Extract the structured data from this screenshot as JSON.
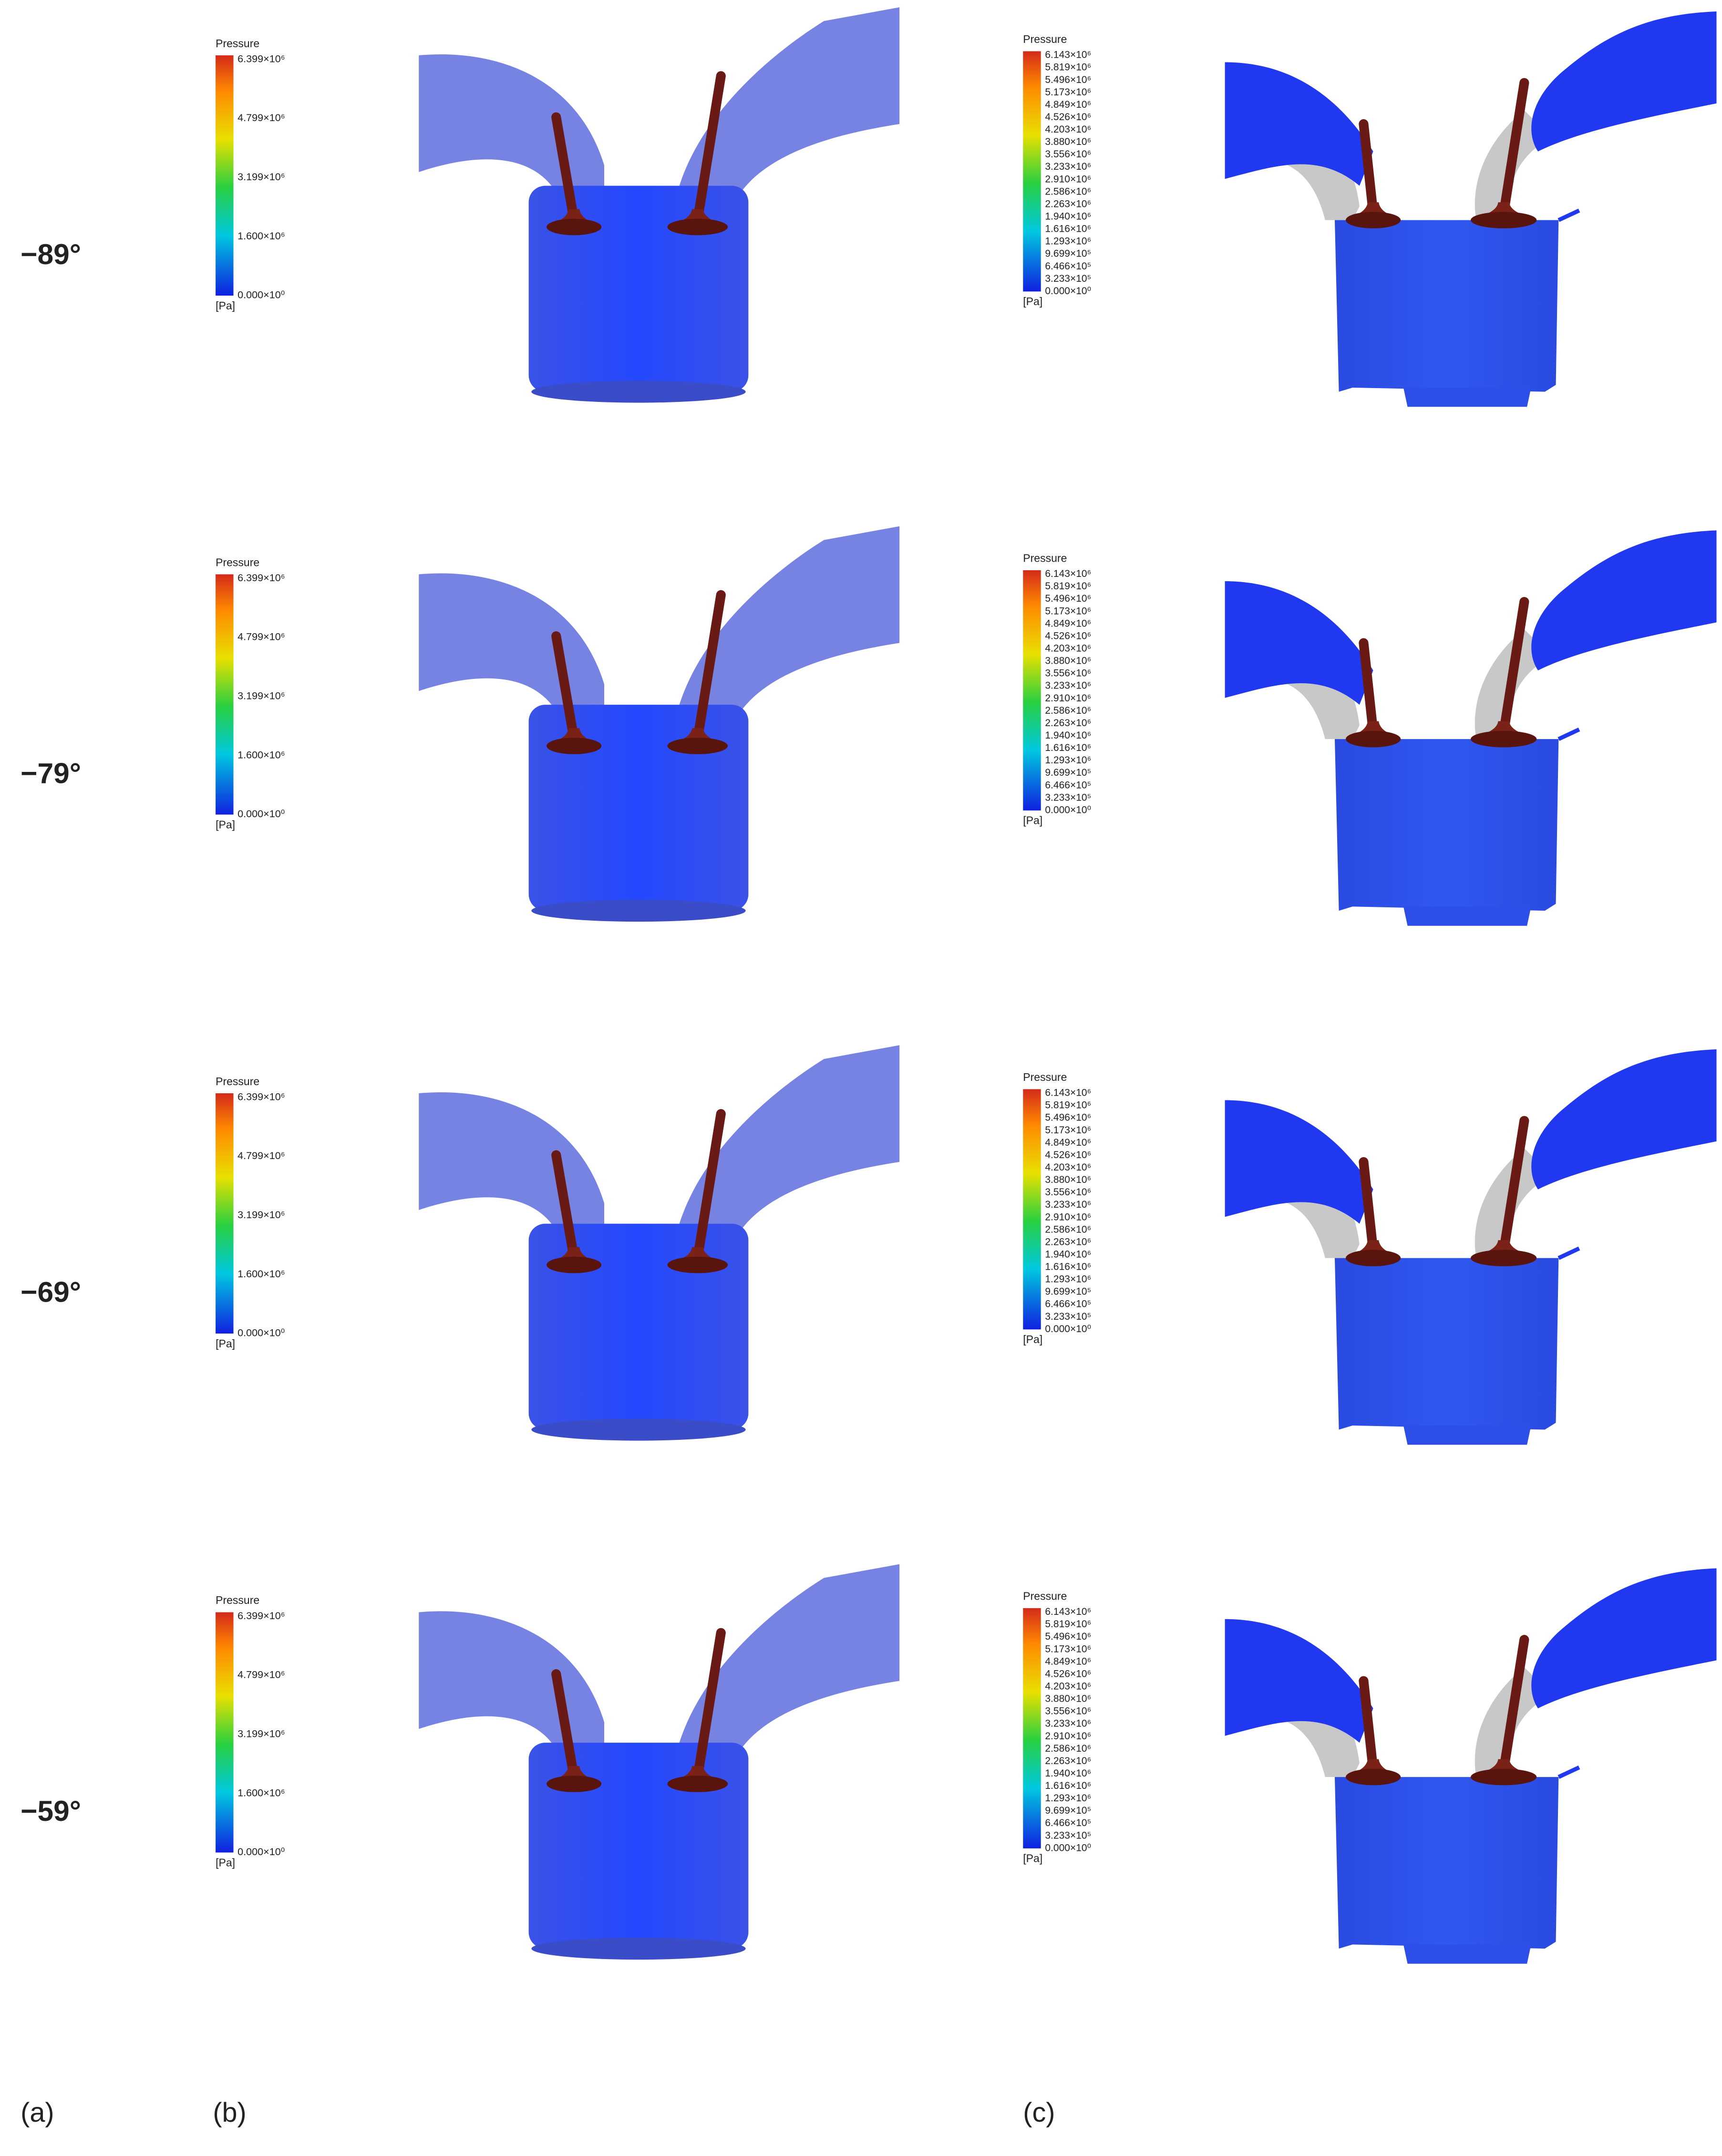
{
  "rows": [
    {
      "angle": "−89°"
    },
    {
      "angle": "−79°"
    },
    {
      "angle": "−69°"
    },
    {
      "angle": "−59°"
    }
  ],
  "legend_b": {
    "title": "Pressure",
    "ticks": [
      "6.399×10⁶",
      "4.799×10⁶",
      "3.199×10⁶",
      "1.600×10⁶",
      "0.000×10⁰"
    ],
    "unit": "[Pa]"
  },
  "legend_c": {
    "title": "Pressure",
    "ticks": [
      "6.143×10⁶",
      "5.819×10⁶",
      "5.496×10⁶",
      "5.173×10⁶",
      "4.849×10⁶",
      "4.526×10⁶",
      "4.203×10⁶",
      "3.880×10⁶",
      "3.556×10⁶",
      "3.233×10⁶",
      "2.910×10⁶",
      "2.586×10⁶",
      "2.263×10⁶",
      "1.940×10⁶",
      "1.616×10⁶",
      "1.293×10⁶",
      "9.699×10⁵",
      "6.466×10⁵",
      "3.233×10⁵",
      "0.000×10⁰"
    ],
    "unit": "[Pa]"
  },
  "panel_labels": [
    "(a)",
    "(b)",
    "(c)"
  ]
}
